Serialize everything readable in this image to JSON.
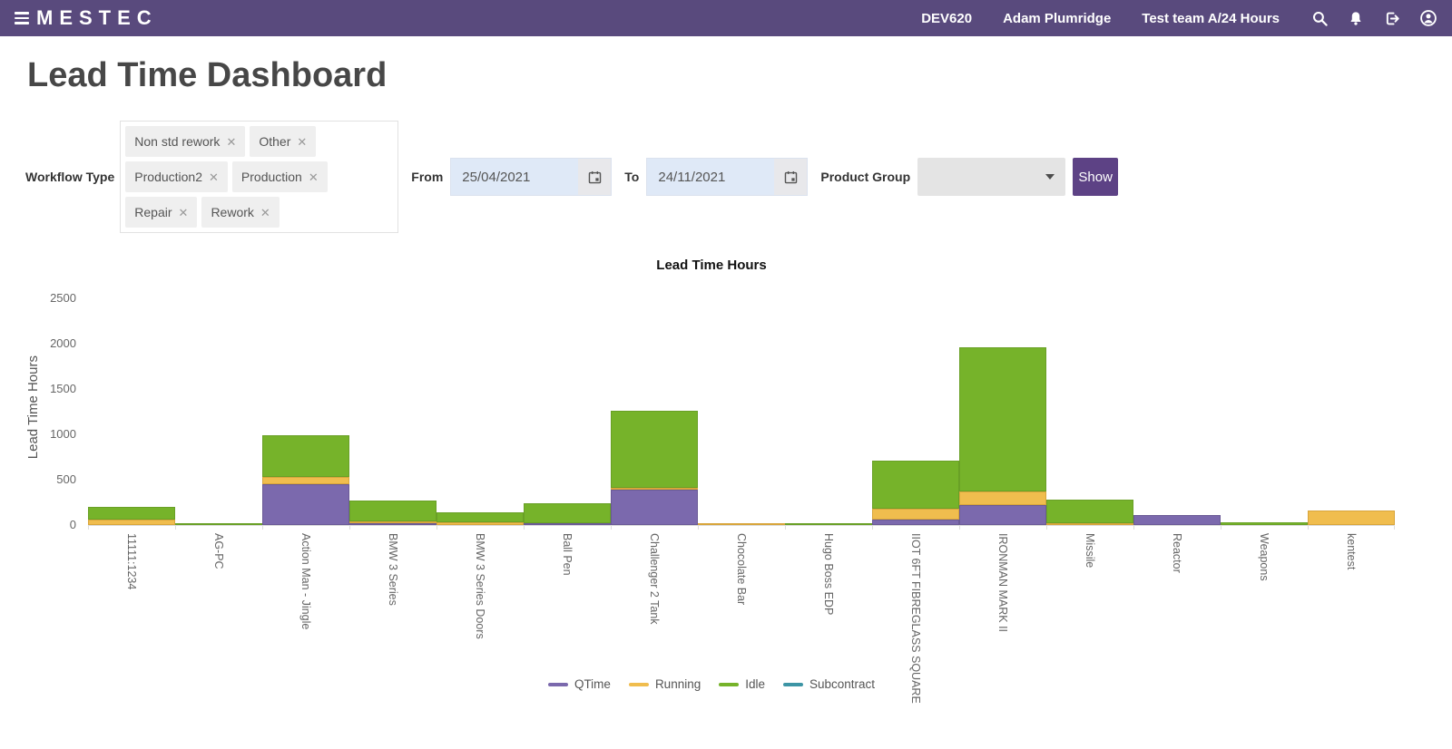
{
  "header": {
    "brand": "MESTEC",
    "environment": "DEV620",
    "user": "Adam Plumridge",
    "team": "Test team A/24 Hours",
    "icons": [
      "hamburger-menu",
      "search",
      "notifications-bell",
      "logout",
      "user-profile"
    ]
  },
  "page": {
    "title": "Lead Time Dashboard"
  },
  "filters": {
    "workflow_type_label": "Workflow Type",
    "workflow_chips": [
      "Non std rework",
      "Other",
      "Production2",
      "Production",
      "Repair",
      "Rework"
    ],
    "chip_remove_icon": "✕",
    "from_label": "From",
    "from_value": "25/04/2021",
    "to_label": "To",
    "to_value": "24/11/2021",
    "product_group_label": "Product Group",
    "product_group_value": "",
    "show_label": "Show"
  },
  "chart_data": {
    "type": "bar",
    "stacked": true,
    "title": "Lead Time Hours",
    "xlabel": "",
    "ylabel": "Lead Time Hours",
    "ylim": [
      0,
      2500
    ],
    "yticks": [
      0,
      500,
      1000,
      1500,
      2000,
      2500
    ],
    "grid": false,
    "legend_position": "bottom",
    "categories": [
      "11111:1234",
      "AG-PC",
      "Action Man - Jingle",
      "BMW 3 Series",
      "BMW 3 Series Doors",
      "Ball Pen",
      "Challenger 2 Tank",
      "Chocolate Bar",
      "Hugo Boss EDP",
      "IIOT 6FT FIBREGLASS SQUARE",
      "IRONMAN MARK II",
      "Missile",
      "Reactor",
      "Weapons",
      "kentest"
    ],
    "series": [
      {
        "name": "QTime",
        "color": "#7b69ad",
        "border": "#6a5a96",
        "values": [
          0,
          0,
          450,
          20,
          0,
          5,
          395,
          0,
          0,
          60,
          220,
          0,
          115,
          0,
          0
        ]
      },
      {
        "name": "Running",
        "color": "#f0bd4e",
        "border": "#d8a53b",
        "values": [
          60,
          0,
          80,
          15,
          30,
          0,
          15,
          10,
          0,
          120,
          150,
          5,
          0,
          0,
          165
        ]
      },
      {
        "name": "Idle",
        "color": "#76b32a",
        "border": "#69a026",
        "values": [
          140,
          15,
          460,
          235,
          110,
          220,
          850,
          0,
          10,
          530,
          1590,
          265,
          0,
          30,
          0
        ]
      },
      {
        "name": "Subcontract",
        "color": "#3d95a5",
        "border": "#35818f",
        "values": [
          0,
          0,
          0,
          0,
          0,
          0,
          0,
          0,
          0,
          0,
          0,
          0,
          0,
          0,
          0
        ]
      }
    ]
  }
}
